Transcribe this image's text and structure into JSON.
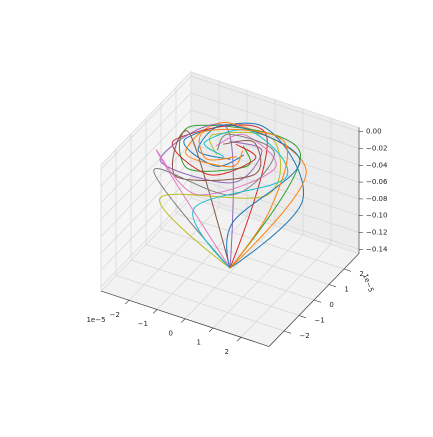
{
  "chart_data": {
    "type": "line3d",
    "xlim": [
      -3,
      3
    ],
    "ylim": [
      -3,
      3
    ],
    "zlim": [
      -0.145,
      0.005
    ],
    "xticks": [
      {
        "value": -2,
        "label": "−2"
      },
      {
        "value": -1,
        "label": "−1"
      },
      0,
      1,
      2
    ],
    "yticks": [
      {
        "value": -2,
        "label": "−2"
      },
      {
        "value": -1,
        "label": "−1"
      },
      0,
      1,
      2
    ],
    "zticks": [
      {
        "value": 0,
        "label": "0.00"
      },
      {
        "value": -0.02,
        "label": "−0.02"
      },
      {
        "value": -0.04,
        "label": "−0.04"
      },
      {
        "value": -0.06,
        "label": "−0.06"
      },
      {
        "value": -0.08,
        "label": "−0.08"
      },
      {
        "value": -0.1,
        "label": "−0.10"
      },
      {
        "value": -0.12,
        "label": "−0.12"
      },
      {
        "value": -0.14,
        "label": "−0.14"
      }
    ],
    "x_offset": "1e−5",
    "y_offset": "1e−5",
    "grid": true,
    "series": [
      {
        "color": "#1f77b4",
        "x": [
          0,
          2.6,
          0,
          -1.6,
          0,
          0.5
        ],
        "y": [
          0,
          0,
          2.2,
          0,
          -1.0,
          0
        ],
        "z": [
          -0.14,
          -0.03,
          -0.012,
          -0.004,
          0,
          0
        ]
      },
      {
        "color": "#ff7f0e",
        "x": [
          0,
          2.08,
          -1.0,
          -1.21,
          0.45,
          0.35
        ],
        "y": [
          0,
          1.2,
          1.73,
          -0.7,
          -0.78,
          0.2
        ],
        "z": [
          -0.14,
          -0.025,
          -0.01,
          -0.003,
          0,
          0
        ]
      },
      {
        "color": "#2ca02c",
        "x": [
          0,
          1.3,
          -1.91,
          -0.8,
          0.87,
          0.25
        ],
        "y": [
          0,
          2.25,
          1.1,
          -1.39,
          -0.5,
          0.43
        ],
        "z": [
          -0.14,
          -0.03,
          -0.012,
          -0.004,
          0,
          0
        ]
      },
      {
        "color": "#d62728",
        "x": [
          0,
          0,
          -2.0,
          0,
          0.9,
          0
        ],
        "y": [
          0,
          2.4,
          0,
          -1.4,
          0,
          0.4
        ],
        "z": [
          -0.14,
          -0.025,
          -0.01,
          -0.003,
          0,
          0
        ]
      },
      {
        "color": "#9467bd",
        "x": [
          0,
          -1.3,
          -1.91,
          0.8,
          0.87,
          -0.25
        ],
        "y": [
          0,
          2.25,
          -1.1,
          -1.39,
          0.5,
          0.43
        ],
        "z": [
          -0.14,
          -0.03,
          -0.012,
          -0.004,
          0,
          0
        ]
      },
      {
        "color": "#8c564b",
        "x": [
          0,
          -2.08,
          -1.0,
          1.21,
          0.45,
          -0.35
        ],
        "y": [
          0,
          1.2,
          -1.73,
          -0.7,
          0.78,
          0.2
        ],
        "z": [
          -0.14,
          -0.025,
          -0.01,
          -0.003,
          0,
          0
        ]
      },
      {
        "color": "#e377c2",
        "x": [
          0,
          -2.6,
          0,
          1.6,
          0,
          -0.5
        ],
        "y": [
          0,
          0,
          -2.2,
          0,
          1.0,
          0
        ],
        "z": [
          -0.14,
          -0.03,
          -0.012,
          -0.004,
          0,
          0
        ]
      },
      {
        "color": "#7f7f7f",
        "x": [
          0,
          -2.08,
          1.0,
          1.21,
          -0.45,
          -0.35
        ],
        "y": [
          0,
          -1.2,
          -1.73,
          0.7,
          0.78,
          -0.2
        ],
        "z": [
          -0.14,
          -0.025,
          -0.01,
          -0.003,
          0,
          0
        ]
      },
      {
        "color": "#bcbd22",
        "x": [
          0,
          -1.3,
          1.91,
          0.8,
          -0.87,
          -0.25
        ],
        "y": [
          0,
          -2.25,
          -1.1,
          1.39,
          0.5,
          -0.43
        ],
        "z": [
          -0.14,
          -0.03,
          -0.012,
          -0.004,
          0,
          0
        ]
      },
      {
        "color": "#17becf",
        "x": [
          0,
          0,
          2.0,
          0,
          -0.9,
          0
        ],
        "y": [
          0,
          -2.4,
          0,
          1.4,
          0,
          -0.4
        ],
        "z": [
          -0.14,
          -0.025,
          -0.01,
          -0.003,
          0,
          0
        ]
      },
      {
        "color": "#1f77b4",
        "x": [
          0,
          1.3,
          1.91,
          -0.8,
          -0.87,
          0.25
        ],
        "y": [
          0,
          -2.25,
          1.1,
          1.39,
          -0.5,
          -0.43
        ],
        "z": [
          -0.14,
          -0.03,
          -0.012,
          -0.004,
          0,
          0
        ]
      },
      {
        "color": "#ff7f0e",
        "x": [
          0,
          2.08,
          1.0,
          -1.21,
          -0.45,
          0.35
        ],
        "y": [
          0,
          -1.2,
          1.73,
          0.7,
          -0.78,
          -0.2
        ],
        "z": [
          -0.14,
          -0.025,
          -0.01,
          -0.003,
          0,
          0
        ]
      }
    ]
  }
}
